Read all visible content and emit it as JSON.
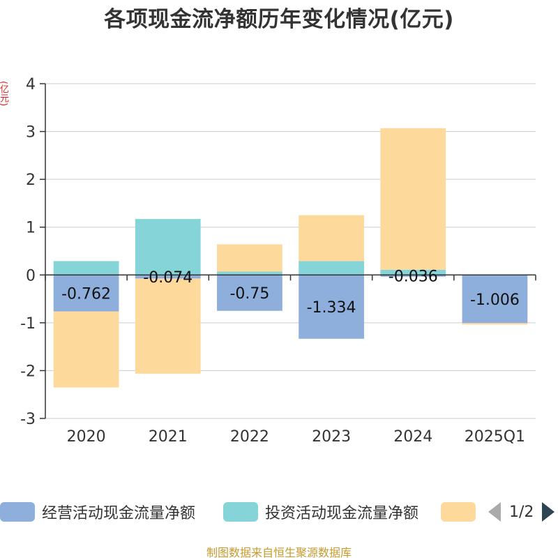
{
  "chart_data": {
    "type": "bar",
    "stacked": true,
    "title": "各项现金流净额历年变化情况(亿元)",
    "unit_label": "(亿元)",
    "categories": [
      "2020",
      "2021",
      "2022",
      "2023",
      "2024",
      "2025Q1"
    ],
    "ylim": [
      -3,
      4
    ],
    "yticks": [
      4,
      3,
      2,
      1,
      0,
      -1,
      -2,
      -3
    ],
    "grid": true,
    "legend_position": "bottom",
    "series": [
      {
        "name": "经营活动现金流量净额",
        "color": "#8eaedc",
        "values": [
          -0.762,
          -0.074,
          -0.75,
          -1.334,
          -0.036,
          -1.006
        ],
        "labels": [
          "-0.762",
          "-0.074",
          "-0.75",
          "-1.334",
          "-0.036",
          "-1.006"
        ]
      },
      {
        "name": "投资活动现金流量净额",
        "color": "#85d4d8",
        "values": [
          0.29,
          1.17,
          0.07,
          0.29,
          0.11,
          0.0
        ]
      },
      {
        "name": "",
        "color": "#fdd99b",
        "values": [
          -1.59,
          -1.99,
          0.57,
          0.96,
          2.96,
          -0.03
        ]
      }
    ]
  },
  "legend": {
    "items": [
      {
        "label": "经营活动现金流量净额",
        "color": "#8eaedc"
      },
      {
        "label": "投资活动现金流量净额",
        "color": "#85d4d8"
      },
      {
        "label": "",
        "color": "#fdd99b"
      }
    ],
    "page_indicator": "1/2"
  },
  "footer": {
    "source": "制图数据来自恒生聚源数据库"
  }
}
